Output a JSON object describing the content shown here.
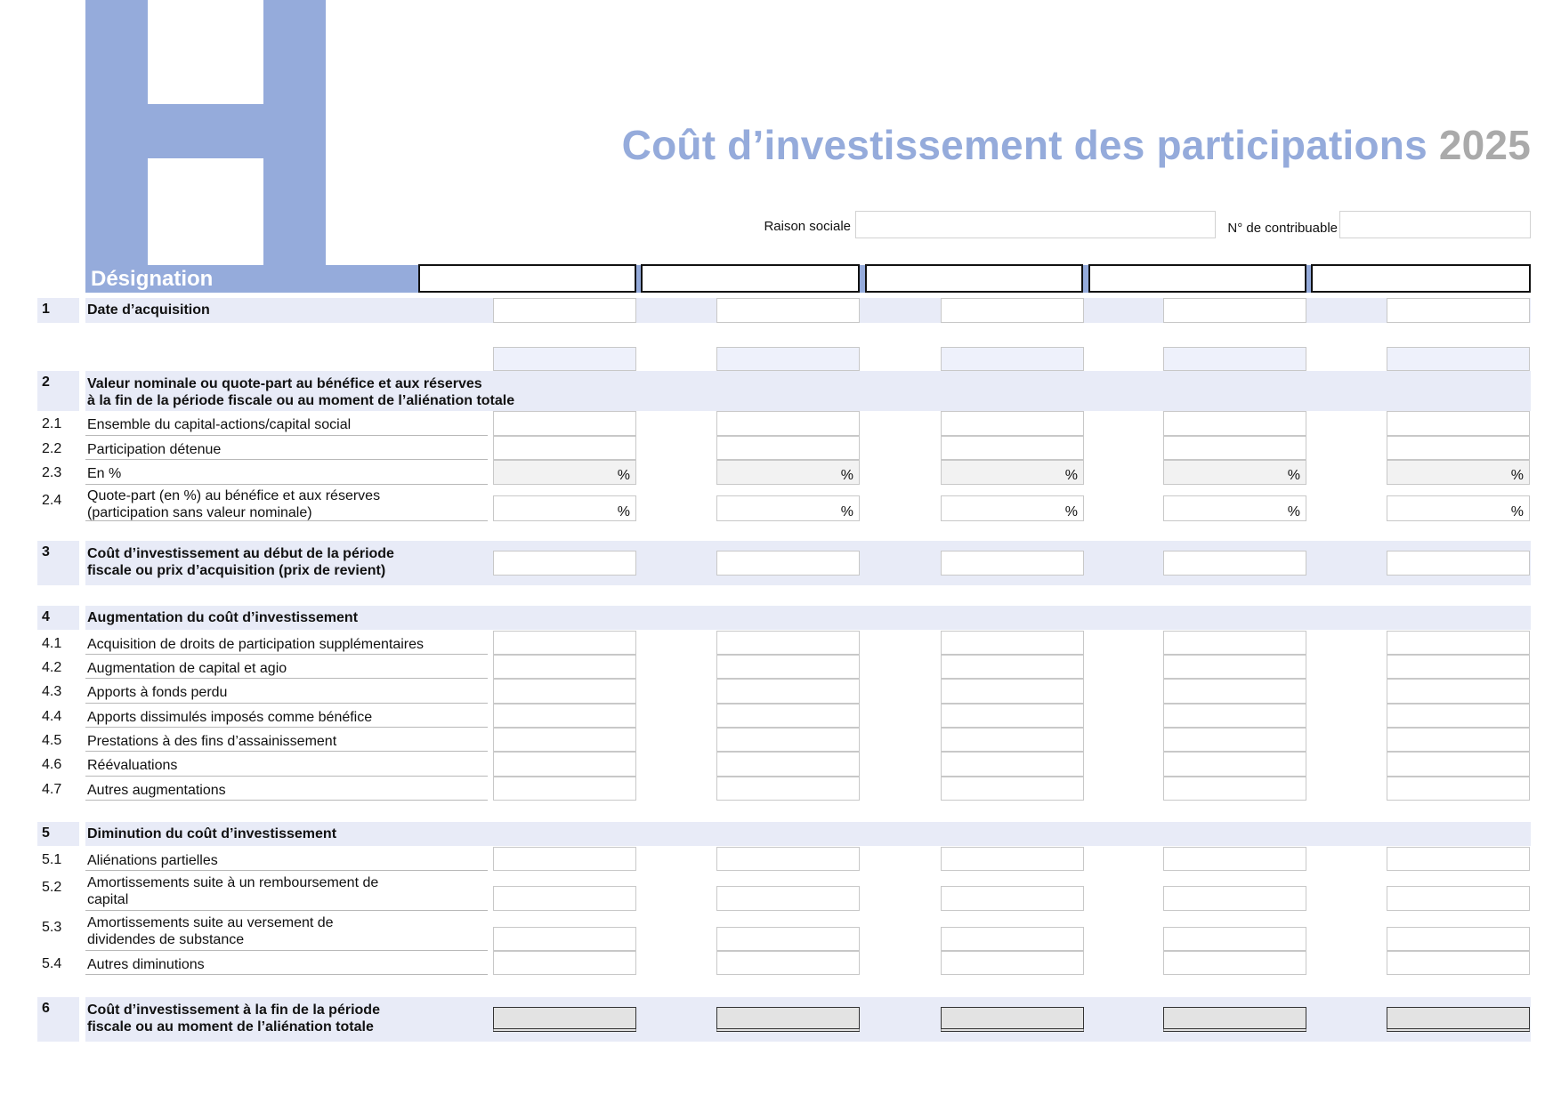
{
  "header": {
    "logo_letter": "H",
    "title": "Coût d’investissement des participations",
    "year": "2025",
    "raison_sociale_label": "Raison sociale",
    "raison_sociale_value": "",
    "contribuable_label": "N° de contribuable",
    "contribuable_value": ""
  },
  "table": {
    "designation_label": "Désignation",
    "column_headers": [
      "",
      "",
      "",
      "",
      ""
    ],
    "percent_unit": "%",
    "rows": [
      {
        "num": "1",
        "label": "Date d’acquisition",
        "bold": true
      },
      {
        "num": "",
        "label": "",
        "bold": false
      },
      {
        "num": "2",
        "label": "Valeur nominale ou quote-part au bénéfice et aux réserves\nà la fin de la période fiscale ou au moment de l’aliénation totale",
        "bold": true
      },
      {
        "num": "2.1",
        "label": "Ensemble du capital-actions/capital social",
        "bold": false
      },
      {
        "num": "2.2",
        "label": "Participation détenue",
        "bold": false
      },
      {
        "num": "2.3",
        "label": "En %",
        "bold": false,
        "percent": true
      },
      {
        "num": "2.4",
        "label": "Quote-part (en %) au bénéfice et aux réserves\n(participation sans valeur nominale)",
        "bold": false,
        "percent": true
      },
      {
        "num": "3",
        "label": "Coût d’investissement au début de la période\nfiscale ou prix d’acquisition (prix de revient)",
        "bold": true
      },
      {
        "num": "4",
        "label": "Augmentation du coût d’investissement",
        "bold": true
      },
      {
        "num": "4.1",
        "label": "Acquisition de droits de participation supplémentaires",
        "bold": false
      },
      {
        "num": "4.2",
        "label": "Augmentation de capital et agio",
        "bold": false
      },
      {
        "num": "4.3",
        "label": "Apports à fonds perdu",
        "bold": false
      },
      {
        "num": "4.4",
        "label": "Apports dissimulés imposés comme bénéfice",
        "bold": false
      },
      {
        "num": "4.5",
        "label": "Prestations à des fins d’assainissement",
        "bold": false
      },
      {
        "num": "4.6",
        "label": "Réévaluations",
        "bold": false
      },
      {
        "num": "4.7",
        "label": "Autres augmentations",
        "bold": false
      },
      {
        "num": "5",
        "label": "Diminution du coût d’investissement",
        "bold": true
      },
      {
        "num": "5.1",
        "label": "Aliénations partielles",
        "bold": false
      },
      {
        "num": "5.2",
        "label": "Amortissements suite à un remboursement de\ncapital",
        "bold": false
      },
      {
        "num": "5.3",
        "label": "Amortissements suite au versement de\ndividendes de substance",
        "bold": false
      },
      {
        "num": "5.4",
        "label": "Autres diminutions",
        "bold": false
      },
      {
        "num": "6",
        "label": "Coût d’investissement à la fin de la période\nfiscale ou au moment de l’aliénation totale",
        "bold": true
      }
    ]
  },
  "colors": {
    "accent": "#95abdb",
    "band": "#e8ebf7",
    "year": "#aaaaaa"
  }
}
